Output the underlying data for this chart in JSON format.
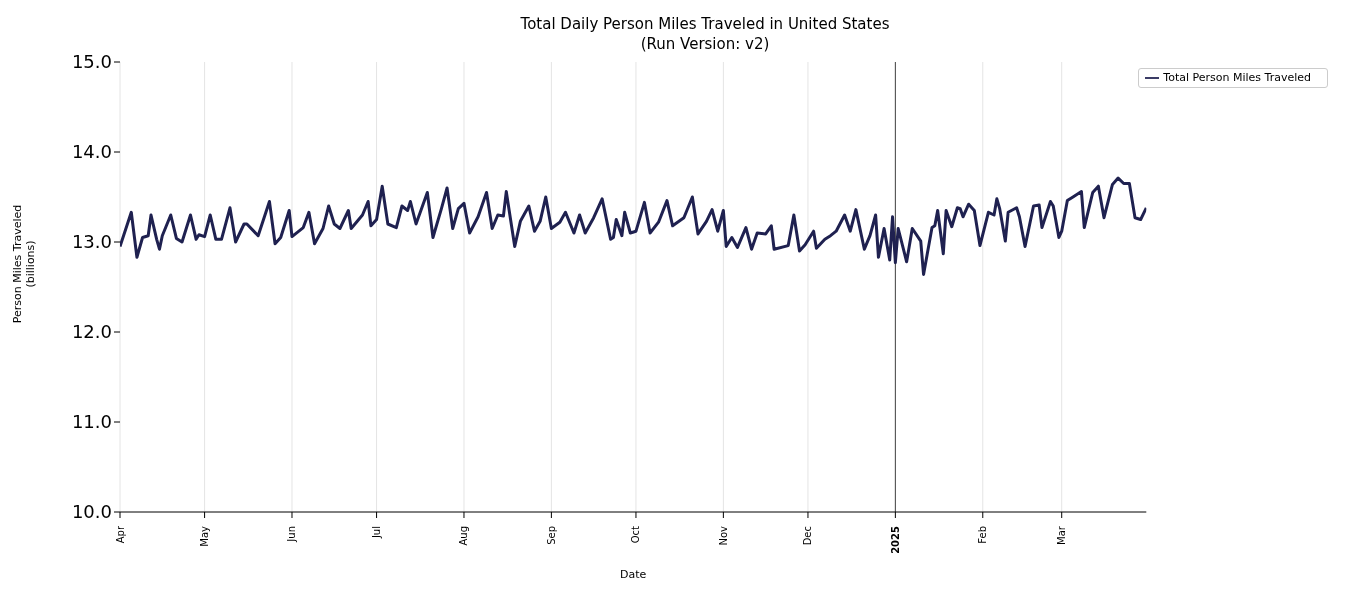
{
  "chart_data": {
    "type": "line",
    "title": "Total Daily Person Miles Traveled in United States",
    "subtitle": "(Run Version: v2)",
    "xlabel": "Date",
    "ylabel": "Person Miles Traveled\n(billions)",
    "x": [
      "2024-04-01",
      "2024-04-05",
      "2024-04-07",
      "2024-04-09",
      "2024-04-11",
      "2024-04-12",
      "2024-04-14",
      "2024-04-15",
      "2024-04-16",
      "2024-04-19",
      "2024-04-21",
      "2024-04-23",
      "2024-04-26",
      "2024-04-28",
      "2024-04-29",
      "2024-05-01",
      "2024-05-03",
      "2024-05-05",
      "2024-05-07",
      "2024-05-10",
      "2024-05-12",
      "2024-05-15",
      "2024-05-16",
      "2024-05-20",
      "2024-05-24",
      "2024-05-26",
      "2024-05-28",
      "2024-05-31",
      "2024-06-01",
      "2024-06-05",
      "2024-06-07",
      "2024-06-09",
      "2024-06-12",
      "2024-06-14",
      "2024-06-16",
      "2024-06-18",
      "2024-06-21",
      "2024-06-22",
      "2024-06-26",
      "2024-06-28",
      "2024-06-29",
      "2024-07-01",
      "2024-07-03",
      "2024-07-05",
      "2024-07-08",
      "2024-07-10",
      "2024-07-12",
      "2024-07-13",
      "2024-07-15",
      "2024-07-19",
      "2024-07-21",
      "2024-07-24",
      "2024-07-26",
      "2024-07-28",
      "2024-07-30",
      "2024-08-01",
      "2024-08-03",
      "2024-08-06",
      "2024-08-09",
      "2024-08-11",
      "2024-08-13",
      "2024-08-15",
      "2024-08-16",
      "2024-08-19",
      "2024-08-21",
      "2024-08-24",
      "2024-08-26",
      "2024-08-28",
      "2024-08-30",
      "2024-09-01",
      "2024-09-04",
      "2024-09-06",
      "2024-09-09",
      "2024-09-11",
      "2024-09-13",
      "2024-09-16",
      "2024-09-19",
      "2024-09-22",
      "2024-09-23",
      "2024-09-24",
      "2024-09-26",
      "2024-09-27",
      "2024-09-29",
      "2024-10-01",
      "2024-10-04",
      "2024-10-06",
      "2024-10-09",
      "2024-10-12",
      "2024-10-14",
      "2024-10-18",
      "2024-10-21",
      "2024-10-23",
      "2024-10-26",
      "2024-10-28",
      "2024-10-30",
      "2024-11-01",
      "2024-11-02",
      "2024-11-04",
      "2024-11-06",
      "2024-11-09",
      "2024-11-11",
      "2024-11-13",
      "2024-11-16",
      "2024-11-18",
      "2024-11-19",
      "2024-11-24",
      "2024-11-26",
      "2024-11-28",
      "2024-11-30",
      "2024-12-03",
      "2024-12-04",
      "2024-12-07",
      "2024-12-09",
      "2024-12-11",
      "2024-12-14",
      "2024-12-16",
      "2024-12-18",
      "2024-12-21",
      "2024-12-23",
      "2024-12-25",
      "2024-12-26",
      "2024-12-28",
      "2024-12-30",
      "2024-12-31",
      "2025-01-01",
      "2025-01-02",
      "2025-01-05",
      "2025-01-07",
      "2025-01-10",
      "2025-01-11",
      "2025-01-14",
      "2025-01-15",
      "2025-01-16",
      "2025-01-18",
      "2025-01-19",
      "2025-01-21",
      "2025-01-23",
      "2025-01-24",
      "2025-01-25",
      "2025-01-27",
      "2025-01-29",
      "2025-01-31",
      "2025-02-03",
      "2025-02-05",
      "2025-02-06",
      "2025-02-07",
      "2025-02-09",
      "2025-02-10",
      "2025-02-13",
      "2025-02-14",
      "2025-02-16",
      "2025-02-19",
      "2025-02-21",
      "2025-02-22",
      "2025-02-25",
      "2025-02-26",
      "2025-02-28",
      "2025-03-01",
      "2025-03-03",
      "2025-03-05",
      "2025-03-08",
      "2025-03-09",
      "2025-03-12",
      "2025-03-14",
      "2025-03-16",
      "2025-03-19",
      "2025-03-21",
      "2025-03-23",
      "2025-03-25",
      "2025-03-27",
      "2025-03-29",
      "2025-03-31"
    ],
    "series": [
      {
        "name": "Total Person Miles Traveled",
        "color": "#1f2150",
        "values": [
          12.95,
          13.33,
          12.83,
          13.05,
          13.07,
          13.3,
          13.03,
          12.92,
          13.07,
          13.3,
          13.04,
          13.0,
          13.3,
          13.03,
          13.08,
          13.06,
          13.3,
          13.03,
          13.03,
          13.38,
          13.0,
          13.2,
          13.2,
          13.07,
          13.45,
          12.98,
          13.05,
          13.35,
          13.06,
          13.16,
          13.33,
          12.98,
          13.15,
          13.4,
          13.2,
          13.15,
          13.35,
          13.15,
          13.3,
          13.45,
          13.18,
          13.25,
          13.62,
          13.2,
          13.16,
          13.4,
          13.35,
          13.45,
          13.2,
          13.55,
          13.05,
          13.37,
          13.6,
          13.15,
          13.37,
          13.43,
          13.1,
          13.28,
          13.55,
          13.15,
          13.3,
          13.29,
          13.56,
          12.95,
          13.23,
          13.4,
          13.12,
          13.23,
          13.5,
          13.15,
          13.22,
          13.33,
          13.1,
          13.3,
          13.1,
          13.27,
          13.48,
          13.03,
          13.05,
          13.25,
          13.07,
          13.33,
          13.1,
          13.12,
          13.44,
          13.1,
          13.22,
          13.46,
          13.18,
          13.27,
          13.5,
          13.09,
          13.23,
          13.36,
          13.12,
          13.35,
          12.95,
          13.05,
          12.94,
          13.16,
          12.92,
          13.1,
          13.09,
          13.18,
          12.92,
          12.96,
          13.3,
          12.9,
          12.97,
          13.12,
          12.93,
          13.03,
          13.07,
          13.12,
          13.3,
          13.12,
          13.36,
          12.92,
          13.07,
          13.3,
          12.83,
          13.15,
          12.8,
          13.28,
          12.77,
          13.15,
          12.78,
          13.15,
          13.01,
          12.64,
          13.16,
          13.18,
          13.35,
          12.87,
          13.35,
          13.17,
          13.38,
          13.37,
          13.28,
          13.42,
          13.35,
          12.96,
          13.33,
          13.3,
          13.48,
          13.37,
          13.01,
          13.33,
          13.38,
          13.28,
          12.95,
          13.4,
          13.41,
          13.16,
          13.45,
          13.4,
          13.05,
          13.12,
          13.46,
          13.5,
          13.56,
          13.16,
          13.55,
          13.62,
          13.27,
          13.64,
          13.71,
          13.65,
          13.65,
          13.27,
          13.25,
          13.38
        ]
      }
    ],
    "xlim": [
      "2024-04-01",
      "2025-03-31"
    ],
    "xticks": [
      {
        "value": "2024-04-01",
        "label": "Apr"
      },
      {
        "value": "2024-05-01",
        "label": "May"
      },
      {
        "value": "2024-06-01",
        "label": "Jun"
      },
      {
        "value": "2024-07-01",
        "label": "Jul"
      },
      {
        "value": "2024-08-01",
        "label": "Aug"
      },
      {
        "value": "2024-09-01",
        "label": "Sep"
      },
      {
        "value": "2024-10-01",
        "label": "Oct"
      },
      {
        "value": "2024-11-01",
        "label": "Nov"
      },
      {
        "value": "2024-12-01",
        "label": "Dec"
      },
      {
        "value": "2025-01-01",
        "label": "2025"
      },
      {
        "value": "2025-02-01",
        "label": "Feb"
      },
      {
        "value": "2025-03-01",
        "label": "Mar"
      }
    ],
    "ylim": [
      10,
      15
    ],
    "yticks": [
      {
        "value": 10,
        "label": "10.0"
      },
      {
        "value": 11,
        "label": "11.0"
      },
      {
        "value": 12,
        "label": "12.0"
      },
      {
        "value": 13,
        "label": "13.0"
      },
      {
        "value": 14,
        "label": "14.0"
      },
      {
        "value": 15,
        "label": "15.0"
      }
    ],
    "ref_lines": [
      {
        "axis": "x",
        "value": "2025-01-01",
        "color": "#444444",
        "line_style": "solid"
      }
    ],
    "grid": "x",
    "legend": "top right",
    "marker": "none",
    "line_style": "solid"
  }
}
